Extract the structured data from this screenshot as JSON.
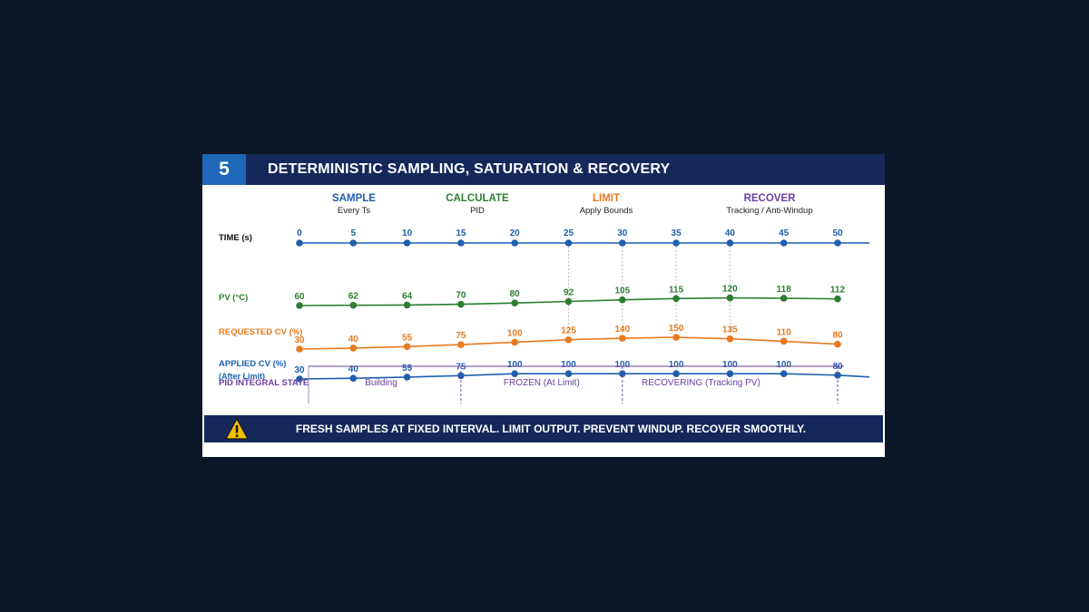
{
  "step_number": "5",
  "title": "DETERMINISTIC SAMPLING, SATURATION & RECOVERY",
  "phases": [
    {
      "name": "SAMPLE",
      "subtitle": "Every Ts",
      "color": "#1f5fb0"
    },
    {
      "name": "CALCULATE",
      "subtitle": "PID",
      "color": "#2e7d32"
    },
    {
      "name": "LIMIT",
      "subtitle": "Apply Bounds",
      "color": "#e8791d"
    },
    {
      "name": "RECOVER",
      "subtitle": "Tracking / Anti-Windup",
      "color": "#6a3fa0"
    }
  ],
  "rows": [
    {
      "label": "TIME (s)",
      "sublabel": "",
      "label_color": "#111111",
      "color": "#1f5fb0",
      "values": [
        0,
        5,
        10,
        15,
        20,
        25,
        30,
        35,
        40,
        45,
        50
      ]
    },
    {
      "label": "PV (°C)",
      "sublabel": "",
      "label_color": "#2e7d32",
      "color": "#2e7d32",
      "values": [
        60,
        62,
        64,
        70,
        80,
        92,
        105,
        115,
        120,
        118,
        112
      ]
    },
    {
      "label": "REQUESTED CV (%)",
      "sublabel": "",
      "label_color": "#e8791d",
      "color": "#e8791d",
      "values": [
        30,
        40,
        55,
        75,
        100,
        125,
        140,
        150,
        135,
        110,
        80
      ]
    },
    {
      "label": "APPLIED CV (%)",
      "sublabel": "(After Limit)",
      "label_color": "#1f5fb0",
      "color": "#1f5fb0",
      "values": [
        30,
        40,
        55,
        75,
        100,
        100,
        100,
        100,
        100,
        100,
        80
      ]
    }
  ],
  "integral_state": {
    "label": "PID INTEGRAL STATE",
    "label_color": "#6a3fa0",
    "segments": [
      {
        "label": "Building",
        "from": 0,
        "to": 15
      },
      {
        "label": "FROZEN (At Limit)",
        "from": 15,
        "to": 30
      },
      {
        "label": "RECOVERING (Tracking PV)",
        "from": 30,
        "to": 50
      }
    ]
  },
  "footer": {
    "text": "FRESH SAMPLES AT FIXED INTERVAL. LIMIT OUTPUT. PREVENT WINDUP. RECOVER SMOOTHLY.",
    "icon": "warning-icon"
  }
}
